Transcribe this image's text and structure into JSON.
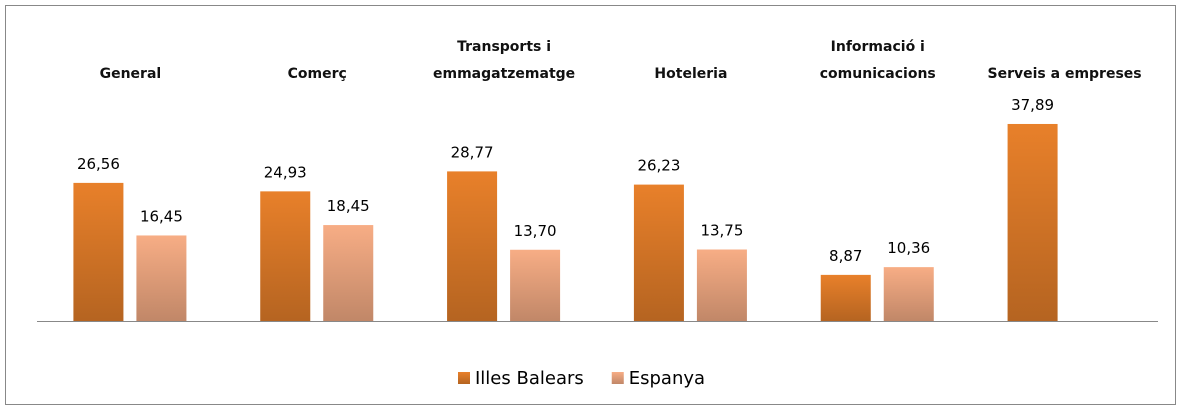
{
  "chart_data": {
    "type": "bar",
    "categories": [
      "General",
      "Comerç",
      "Transports i emmagatzematge",
      "Hoteleria",
      "Informació i comunicacions",
      "Serveis a empreses"
    ],
    "series": [
      {
        "name": "Illes Balears",
        "color": "#e8802a",
        "values": [
          26.56,
          24.93,
          28.77,
          26.23,
          8.87,
          37.89
        ],
        "value_labels": [
          "26,56",
          "24,93",
          "28,77",
          "26,23",
          "8,87",
          "37,89"
        ]
      },
      {
        "name": "Espanya",
        "color": "#f7ad85",
        "values": [
          16.45,
          18.45,
          13.7,
          13.75,
          10.36,
          null
        ],
        "value_labels": [
          "16,45",
          "18,45",
          "13,70",
          "13,75",
          "10,36",
          null
        ]
      }
    ],
    "legend": "bottom"
  }
}
